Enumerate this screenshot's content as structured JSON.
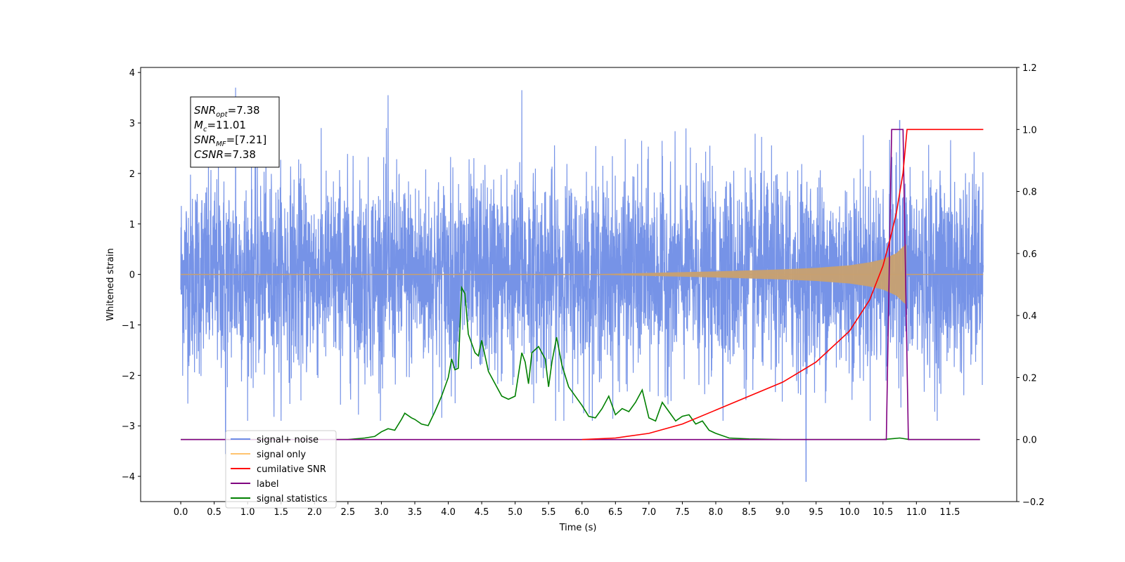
{
  "chart_data": {
    "type": "line",
    "title": "",
    "xlabel": "Time (s)",
    "ylabel": "Whitened strain",
    "ylabel_right": "",
    "xlim": [
      -0.6,
      12.5
    ],
    "ylim": [
      -4.5,
      4.1
    ],
    "ylim_right": [
      -0.2,
      1.2
    ],
    "x_ticks": [
      0.0,
      0.5,
      1.0,
      1.5,
      2.0,
      2.5,
      3.0,
      3.5,
      4.0,
      4.5,
      5.0,
      5.5,
      6.0,
      6.5,
      7.0,
      7.5,
      8.0,
      8.5,
      9.0,
      9.5,
      10.0,
      10.5,
      11.0,
      11.5
    ],
    "x_tick_labels": [
      "0.0",
      "0.5",
      "1.0",
      "1.5",
      "2.0",
      "2.5",
      "3.0",
      "3.5",
      "4.0",
      "4.5",
      "5.0",
      "5.5",
      "6.0",
      "6.5",
      "7.0",
      "7.5",
      "8.0",
      "8.5",
      "9.0",
      "9.5",
      "10.0",
      "10.5",
      "11.0",
      "11.5"
    ],
    "y_ticks": [
      4,
      3,
      2,
      1,
      0,
      -1,
      -2,
      -3,
      -4
    ],
    "y_tick_labels": [
      "4",
      "3",
      "2",
      "1",
      "0",
      "−1",
      "−2",
      "−3",
      "−4"
    ],
    "y_right_ticks": [
      1.2,
      1.0,
      0.8,
      0.6,
      0.4,
      0.2,
      0.0,
      -0.2
    ],
    "y_right_tick_labels": [
      "1.2",
      "1.0",
      "0.8",
      "0.6",
      "0.4",
      "0.2",
      "0.0",
      "−0.2"
    ],
    "annotation": {
      "lines": [
        {
          "base": "SNR",
          "sub": "opt",
          "rest": "=7.38"
        },
        {
          "base": "M",
          "sub": "c",
          "rest": "=11.01"
        },
        {
          "base": "SNR",
          "sub": "MF",
          "rest": "=[7.21]"
        },
        {
          "base": "",
          "sub": "",
          "rest": "CSNR=7.38"
        }
      ]
    },
    "legend": {
      "position": "lower-left",
      "entries": [
        {
          "label": "signal+ noise",
          "color": "#6f8de6"
        },
        {
          "label": "signal only",
          "color": "#ffc36e"
        },
        {
          "label": "cumilative SNR",
          "color": "#ff0000"
        },
        {
          "label": "label",
          "color": "#800080"
        },
        {
          "label": "signal statistics",
          "color": "#008000"
        }
      ]
    },
    "series": [
      {
        "name": "signal+ noise",
        "axis": "left",
        "color": "#6f8de6",
        "description_range": [
          0.0,
          12.0
        ],
        "approx_amplitude": 1.3,
        "extreme_points": [
          [
            0.67,
            -3.55
          ],
          [
            0.82,
            3.7
          ],
          [
            3.1,
            3.55
          ],
          [
            5.1,
            3.65
          ],
          [
            9.35,
            -4.1
          ],
          [
            10.75,
            3.05
          ]
        ]
      },
      {
        "name": "signal only",
        "axis": "left",
        "color": "#c8a070",
        "x": [
          0.0,
          6.0,
          7.0,
          8.0,
          9.0,
          9.5,
          10.0,
          10.3,
          10.5,
          10.7,
          10.8,
          10.85,
          10.86,
          12.0
        ],
        "envelope": [
          0.0,
          0.0,
          0.03,
          0.06,
          0.1,
          0.13,
          0.18,
          0.24,
          0.3,
          0.42,
          0.55,
          0.6,
          0.0,
          0.0
        ]
      },
      {
        "name": "cumilative SNR",
        "axis": "right",
        "color": "#ff0000",
        "x": [
          6.0,
          6.5,
          7.0,
          7.5,
          8.0,
          8.5,
          9.0,
          9.5,
          10.0,
          10.3,
          10.5,
          10.6,
          10.7,
          10.8,
          10.86,
          10.87,
          12.0
        ],
        "values": [
          0.0,
          0.005,
          0.02,
          0.05,
          0.095,
          0.14,
          0.185,
          0.25,
          0.35,
          0.45,
          0.56,
          0.64,
          0.73,
          0.86,
          1.0,
          1.0,
          1.0
        ]
      },
      {
        "name": "label",
        "axis": "right",
        "color": "#800080",
        "x": [
          0.0,
          10.55,
          10.63,
          10.8,
          10.88,
          11.95
        ],
        "values": [
          0.0,
          0.0,
          1.0,
          1.0,
          0.0,
          0.0
        ]
      },
      {
        "name": "signal statistics",
        "axis": "right",
        "color": "#008000",
        "x": [
          0.0,
          2.5,
          2.75,
          2.9,
          3.0,
          3.1,
          3.2,
          3.3,
          3.35,
          3.45,
          3.5,
          3.6,
          3.7,
          3.8,
          3.9,
          4.0,
          4.05,
          4.1,
          4.15,
          4.2,
          4.25,
          4.3,
          4.4,
          4.45,
          4.5,
          4.55,
          4.6,
          4.7,
          4.8,
          4.9,
          5.0,
          5.1,
          5.15,
          5.2,
          5.25,
          5.35,
          5.45,
          5.5,
          5.55,
          5.62,
          5.7,
          5.8,
          5.9,
          6.0,
          6.1,
          6.2,
          6.3,
          6.4,
          6.5,
          6.6,
          6.7,
          6.8,
          6.9,
          7.0,
          7.1,
          7.2,
          7.3,
          7.4,
          7.5,
          7.6,
          7.7,
          7.8,
          7.9,
          8.0,
          8.2,
          8.5,
          8.8,
          9.0,
          10.5,
          10.75,
          10.9,
          11.95
        ],
        "values": [
          0.0,
          0.0,
          0.005,
          0.01,
          0.025,
          0.035,
          0.03,
          0.065,
          0.085,
          0.07,
          0.065,
          0.05,
          0.045,
          0.09,
          0.14,
          0.2,
          0.26,
          0.225,
          0.23,
          0.49,
          0.47,
          0.34,
          0.28,
          0.27,
          0.32,
          0.27,
          0.22,
          0.18,
          0.14,
          0.13,
          0.14,
          0.28,
          0.25,
          0.18,
          0.28,
          0.3,
          0.26,
          0.17,
          0.25,
          0.33,
          0.24,
          0.17,
          0.14,
          0.11,
          0.075,
          0.07,
          0.1,
          0.14,
          0.08,
          0.1,
          0.09,
          0.12,
          0.16,
          0.07,
          0.06,
          0.12,
          0.09,
          0.06,
          0.075,
          0.08,
          0.05,
          0.06,
          0.03,
          0.02,
          0.005,
          0.002,
          0.001,
          0.0,
          0.0,
          0.005,
          0.0,
          0.0
        ]
      }
    ]
  }
}
